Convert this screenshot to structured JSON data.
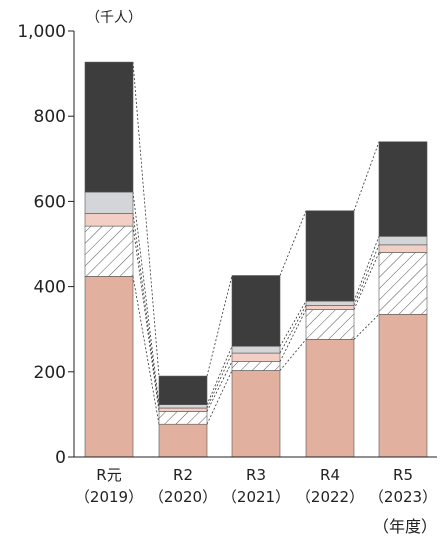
{
  "chart_data": {
    "type": "bar",
    "stacked": true,
    "unit_label": "（千人）",
    "xlabel": "（年度）",
    "ylim": [
      0,
      1000
    ],
    "yticks": [
      0,
      200,
      400,
      600,
      800,
      1000
    ],
    "ytick_labels": [
      "0",
      "200",
      "400",
      "600",
      "800",
      "1,000"
    ],
    "categories": [
      {
        "top": "R元",
        "bottom": "（2019）"
      },
      {
        "top": "R2",
        "bottom": "（2020）"
      },
      {
        "top": "R3",
        "bottom": "（2021）"
      },
      {
        "top": "R4",
        "bottom": "（2022）"
      },
      {
        "top": "R5",
        "bottom": "（2023）"
      }
    ],
    "series": [
      {
        "values": [
          424,
          77,
          203,
          276,
          335
        ],
        "color": "#e2b09f",
        "pattern": "solid"
      },
      {
        "values": [
          118,
          30,
          21,
          70,
          145
        ],
        "color": "#ffffff",
        "pattern": "hatch"
      },
      {
        "values": [
          30,
          8,
          20,
          10,
          18
        ],
        "color": "#f2cfc4",
        "pattern": "solid"
      },
      {
        "values": [
          50,
          8,
          16,
          10,
          20
        ],
        "color": "#d3d5d8",
        "pattern": "solid"
      },
      {
        "values": [
          305,
          67,
          166,
          212,
          222
        ],
        "color": "#3d3d3d",
        "pattern": "solid"
      }
    ],
    "connectors": "dashed",
    "grid": false,
    "legend": "none"
  }
}
